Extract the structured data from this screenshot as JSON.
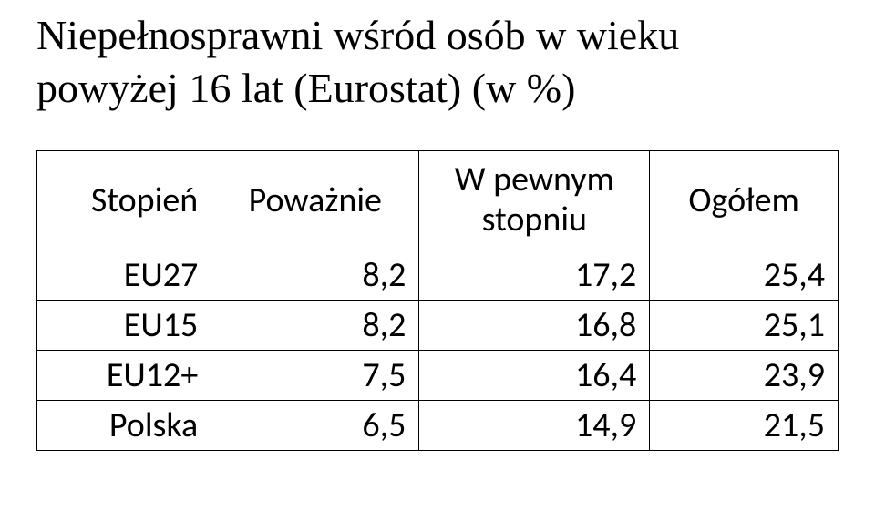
{
  "title": {
    "line1": "Niepełnosprawni wśród osób w wieku",
    "line2": "powyżej 16 lat (Eurostat) (w %)"
  },
  "table": {
    "headers": {
      "col1": "Stopień",
      "col2": "Poważnie",
      "col3_line1": "W pewnym",
      "col3_line2": "stopniu",
      "col4": "Ogółem"
    },
    "rows": [
      {
        "label": "EU27",
        "v1": "8,2",
        "v2": "17,2",
        "v3": "25,4"
      },
      {
        "label": "EU15",
        "v1": "8,2",
        "v2": "16,8",
        "v3": "25,1"
      },
      {
        "label": "EU12+",
        "v1": "7,5",
        "v2": "16,4",
        "v3": "23,9"
      },
      {
        "label": "Polska",
        "v1": "6,5",
        "v2": "14,9",
        "v3": "21,5"
      }
    ]
  }
}
